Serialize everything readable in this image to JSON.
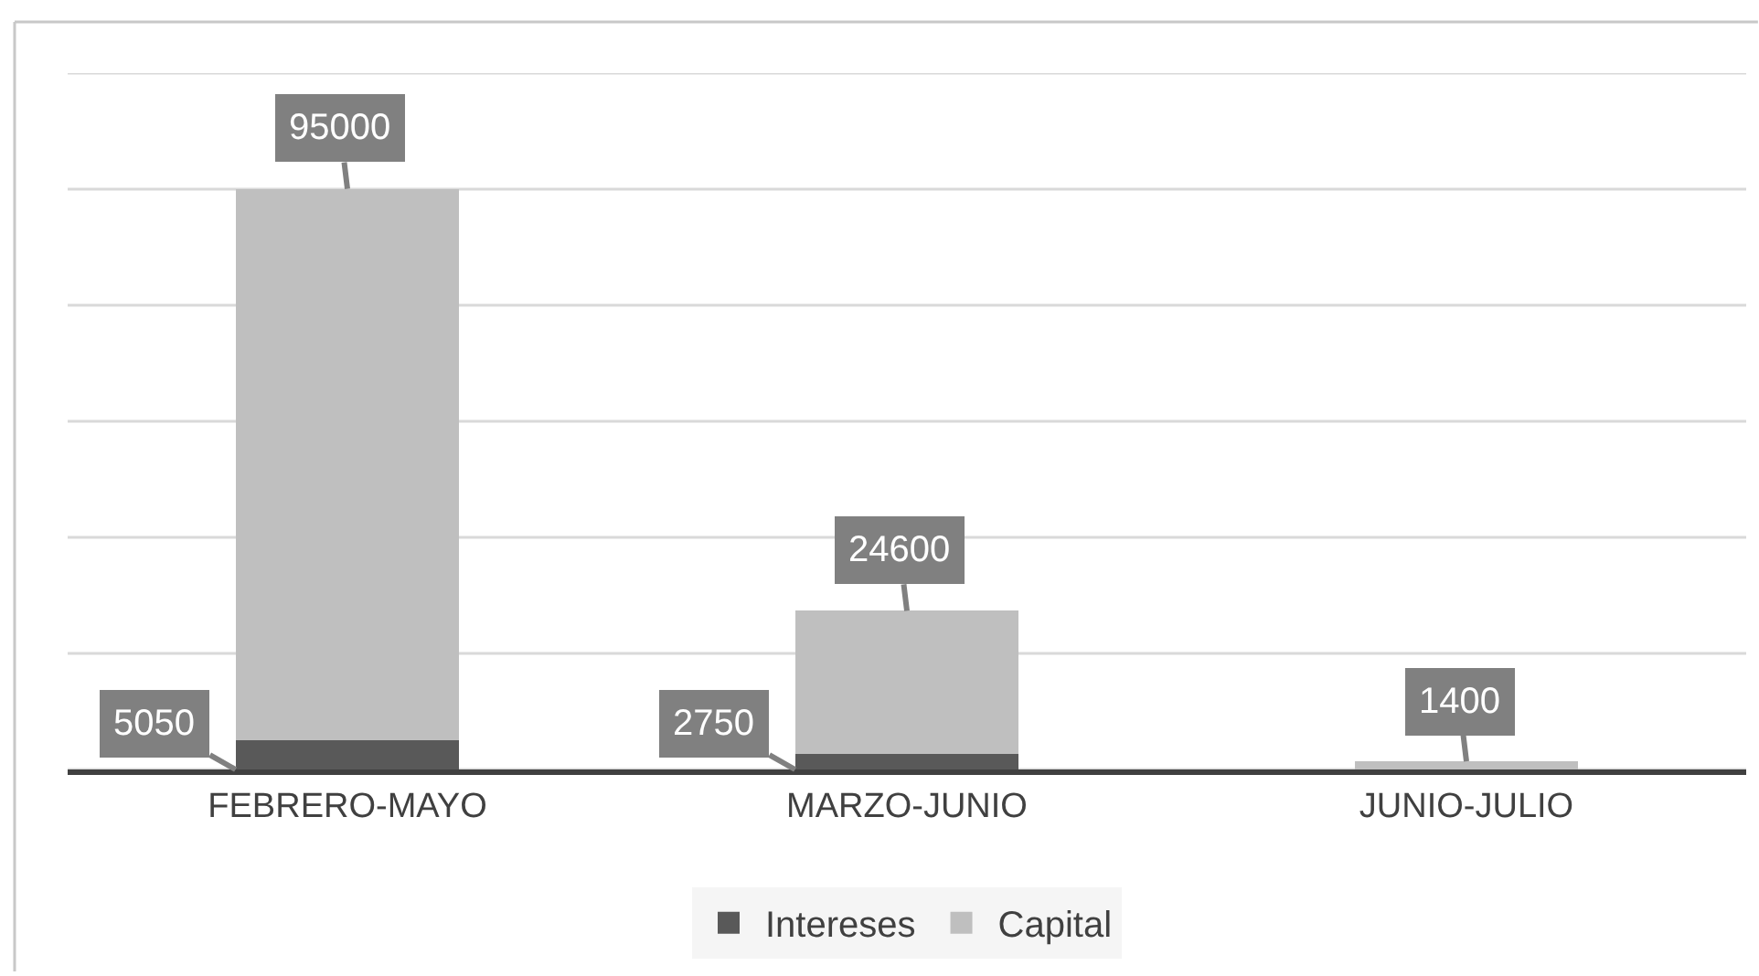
{
  "chart_data": {
    "type": "bar",
    "stacked": true,
    "categories": [
      "FEBRERO-MAYO",
      "MARZO-JUNIO",
      "JUNIO-JULIO"
    ],
    "series": [
      {
        "name": "Intereses",
        "color": "#595959",
        "values": [
          5050,
          2750,
          null
        ]
      },
      {
        "name": "Capital",
        "color": "#bfbfbf",
        "values": [
          95000,
          24600,
          1400
        ]
      }
    ],
    "ylim": [
      0,
      120000
    ],
    "yticks": [
      {
        "value": 0,
        "label": null
      },
      {
        "value": 20000,
        "label": null
      },
      {
        "value": 40000,
        "label": null
      },
      {
        "value": 60000,
        "label": null
      },
      {
        "value": 80000,
        "label": null
      },
      {
        "value": 100000,
        "label": null
      },
      {
        "value": 120000,
        "label": null
      }
    ],
    "grid": "y",
    "tick_labels": "x",
    "legend": "bottom",
    "data_labels": true
  }
}
